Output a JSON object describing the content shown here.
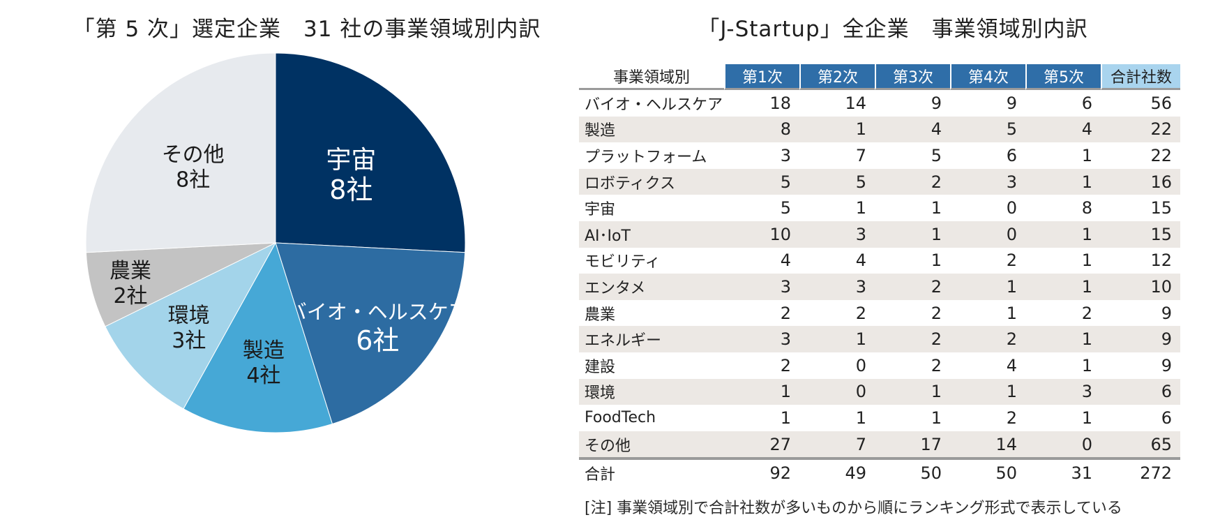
{
  "left_title": "「第 5 次」選定企業　31 社の事業領域別内訳",
  "right_title": "「J-Startup」全企業　事業領域別内訳",
  "chart_data": {
    "type": "pie",
    "title": "「第 5 次」選定企業　31 社の事業領域別内訳",
    "unit": "社",
    "slices": [
      {
        "name": "宇宙",
        "value": 8,
        "label": "8社",
        "color": "#003263"
      },
      {
        "name": "バイオ・ヘルスケア",
        "value": 6,
        "label": "6社",
        "color": "#2d6ca2"
      },
      {
        "name": "製造",
        "value": 4,
        "label": "4社",
        "color": "#46a8d6"
      },
      {
        "name": "環境",
        "value": 3,
        "label": "3社",
        "color": "#a3d4ea"
      },
      {
        "name": "農業",
        "value": 2,
        "label": "2社",
        "color": "#c3c3c3"
      },
      {
        "name": "その他",
        "value": 8,
        "label": "8社",
        "color": "#e7eaee"
      }
    ],
    "start": "12 o'clock",
    "direction": "clockwise"
  },
  "table": {
    "headers": [
      "事業領域別",
      "第1次",
      "第2次",
      "第3次",
      "第4次",
      "第5次",
      "合計社数"
    ],
    "rows": [
      {
        "category": "バイオ・ヘルスケア",
        "values": [
          "18",
          "14",
          "9",
          "9",
          "6",
          "56"
        ]
      },
      {
        "category": "製造",
        "values": [
          "8",
          "1",
          "4",
          "5",
          "4",
          "22"
        ]
      },
      {
        "category": "プラットフォーム",
        "values": [
          "3",
          "7",
          "5",
          "6",
          "1",
          "22"
        ]
      },
      {
        "category": "ロボティクス",
        "values": [
          "5",
          "5",
          "2",
          "3",
          "1",
          "16"
        ]
      },
      {
        "category": "宇宙",
        "values": [
          "5",
          "1",
          "1",
          "0",
          "8",
          "15"
        ]
      },
      {
        "category": "AI･IoT",
        "values": [
          "10",
          "3",
          "1",
          "0",
          "1",
          "15"
        ]
      },
      {
        "category": "モビリティ",
        "values": [
          "4",
          "4",
          "1",
          "2",
          "1",
          "12"
        ]
      },
      {
        "category": "エンタメ",
        "values": [
          "3",
          "3",
          "2",
          "1",
          "1",
          "10"
        ]
      },
      {
        "category": "農業",
        "values": [
          "2",
          "2",
          "2",
          "1",
          "2",
          "9"
        ]
      },
      {
        "category": "エネルギー",
        "values": [
          "3",
          "1",
          "2",
          "2",
          "1",
          "9"
        ]
      },
      {
        "category": "建設",
        "values": [
          "2",
          "0",
          "2",
          "4",
          "1",
          "9"
        ]
      },
      {
        "category": "環境",
        "values": [
          "1",
          "0",
          "1",
          "1",
          "3",
          "6"
        ]
      },
      {
        "category": "FoodTech",
        "values": [
          "1",
          "1",
          "1",
          "2",
          "1",
          "6"
        ]
      },
      {
        "category": "その他",
        "values": [
          "27",
          "7",
          "17",
          "14",
          "0",
          "65"
        ]
      }
    ],
    "total_row": {
      "category": "合計",
      "values": [
        "92",
        "49",
        "50",
        "50",
        "31",
        "272"
      ]
    }
  },
  "note": "[注] 事業領域別で合計社数が多いものから順にランキング形式で表示している",
  "colors": {
    "header_blue": "#2f6ea8",
    "header_total": "#a9d4ee",
    "row_shade": "#ece8e4",
    "rule_gray": "#9a9a9a"
  }
}
